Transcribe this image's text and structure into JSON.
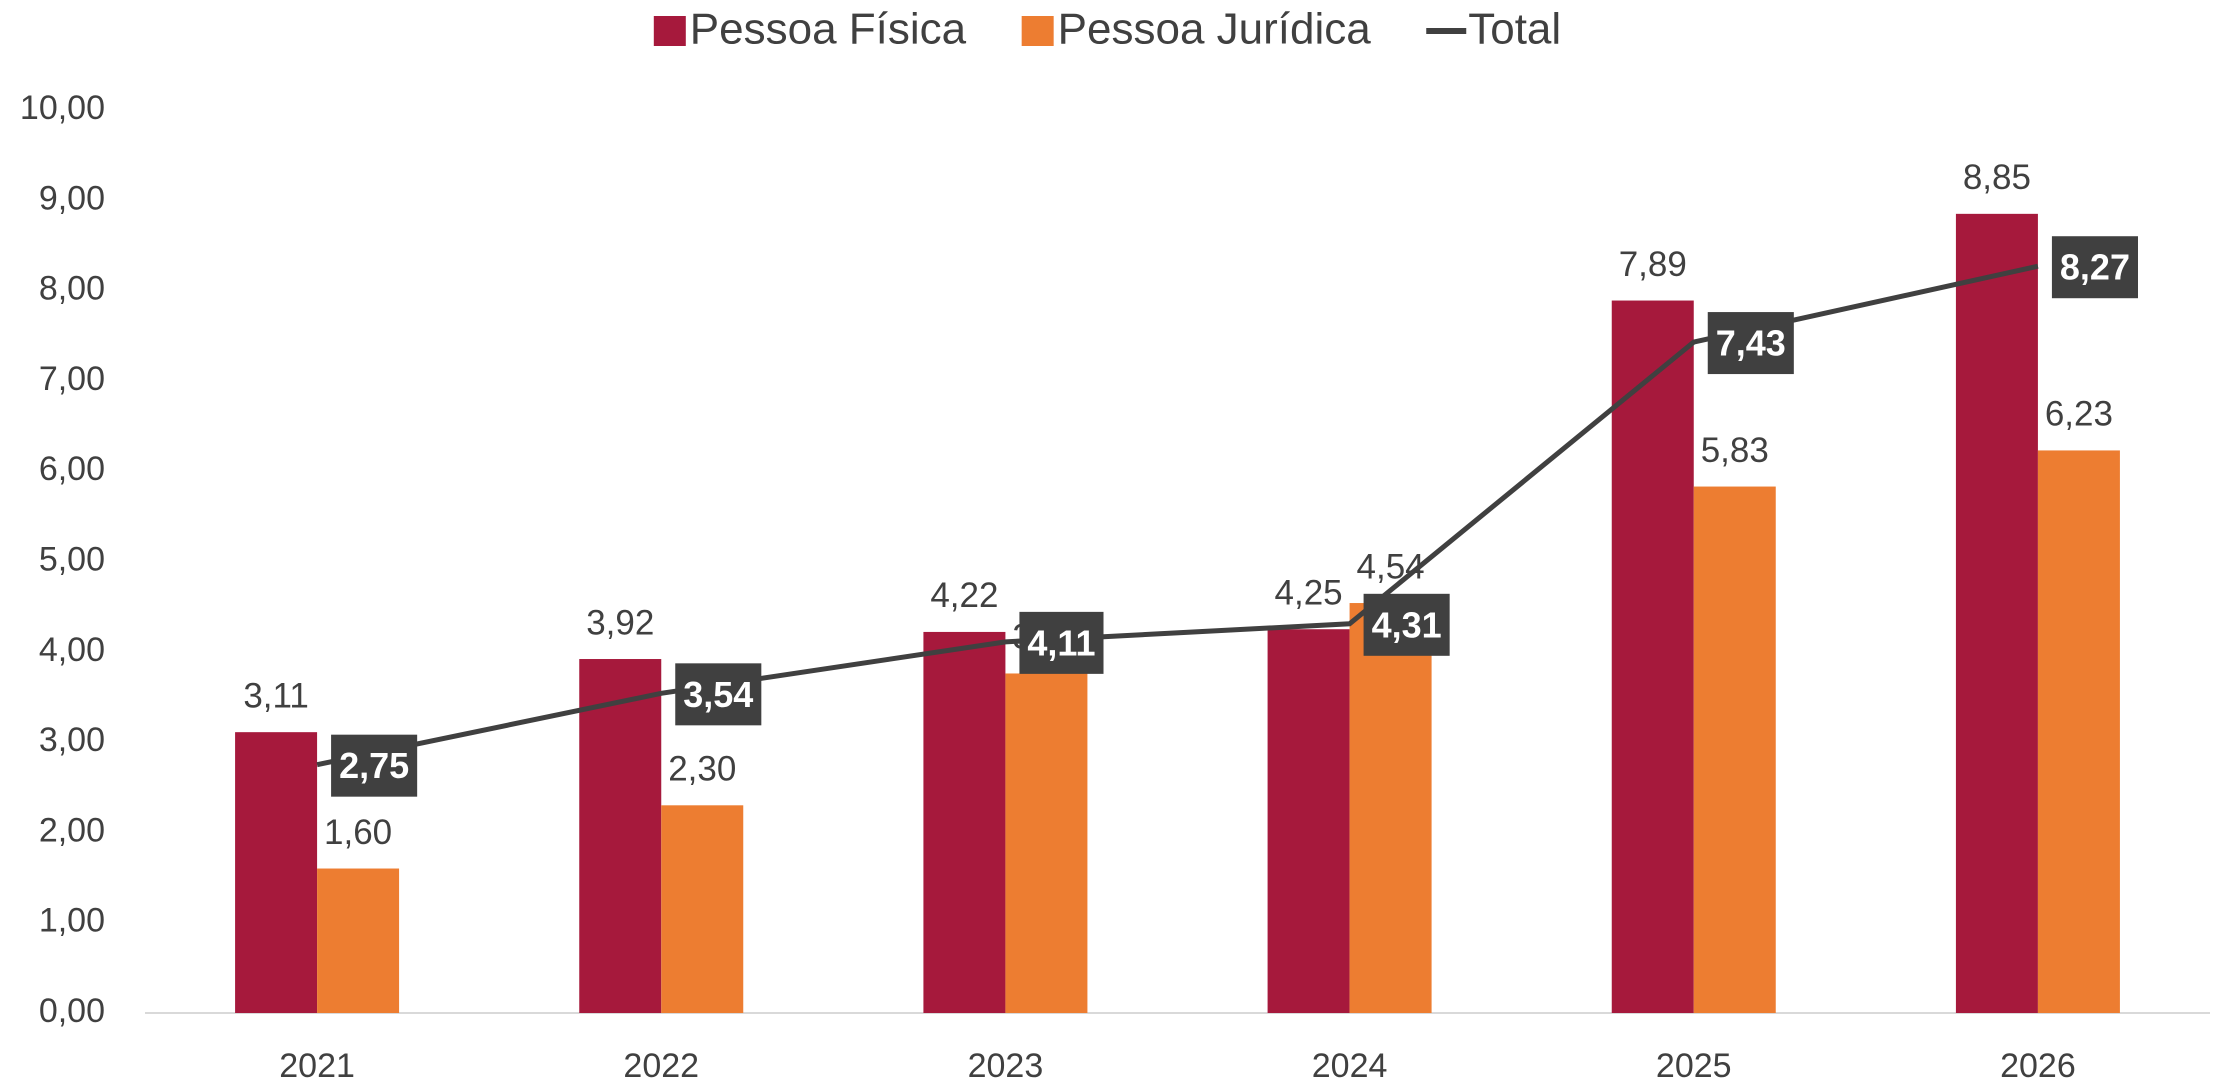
{
  "chart_data": {
    "type": "bar",
    "categories": [
      "2021",
      "2022",
      "2023",
      "2024",
      "2025",
      "2026"
    ],
    "series": [
      {
        "name": "Pessoa Física",
        "color": "#a6193c",
        "values": [
          3.11,
          3.92,
          4.22,
          4.25,
          7.89,
          8.85
        ],
        "value_labels": [
          "3,11",
          "3,92",
          "4,22",
          "4,25",
          "7,89",
          "8,85"
        ]
      },
      {
        "name": "Pessoa Jurídica",
        "color": "#ed7d31",
        "values": [
          1.6,
          2.3,
          3.76,
          4.54,
          5.83,
          6.23
        ],
        "value_labels": [
          "1,60",
          "2,30",
          "3,76",
          "4,54",
          "5,83",
          "6,23"
        ]
      },
      {
        "name": "Total",
        "type": "line",
        "color": "#404040",
        "values": [
          2.75,
          3.54,
          4.11,
          4.31,
          7.43,
          8.27
        ],
        "value_labels": [
          "2,75",
          "3,54",
          "4,11",
          "4,31",
          "7,43",
          "8,27"
        ]
      }
    ],
    "ylim": [
      0,
      10
    ],
    "yticks": [
      {
        "value": 0,
        "label": "0,00"
      },
      {
        "value": 1,
        "label": "1,00"
      },
      {
        "value": 2,
        "label": "2,00"
      },
      {
        "value": 3,
        "label": "3,00"
      },
      {
        "value": 4,
        "label": "4,00"
      },
      {
        "value": 5,
        "label": "5,00"
      },
      {
        "value": 6,
        "label": "6,00"
      },
      {
        "value": 7,
        "label": "7,00"
      },
      {
        "value": 8,
        "label": "8,00"
      },
      {
        "value": 9,
        "label": "9,00"
      },
      {
        "value": 10,
        "label": "10,00"
      }
    ],
    "grid": false,
    "legend": "top"
  }
}
